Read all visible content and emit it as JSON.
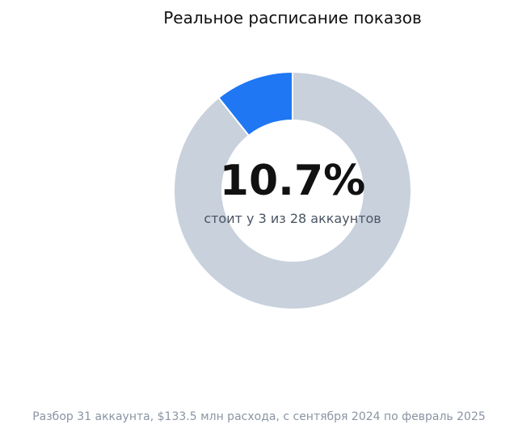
{
  "chart_data": {
    "type": "pie",
    "title": "Реальное расписание показов",
    "slices": [
      {
        "value": 10.7,
        "color": "#1f77f4"
      },
      {
        "value": 89.3,
        "color": "#c8d1dc"
      }
    ],
    "center_value": "10.7%",
    "center_caption": "стоит у 3 из 28 аккаунтов",
    "footnote": "Разбор 31 аккаунта, $133.5 млн расхода, с сентября 2024 по февраль 2025"
  }
}
